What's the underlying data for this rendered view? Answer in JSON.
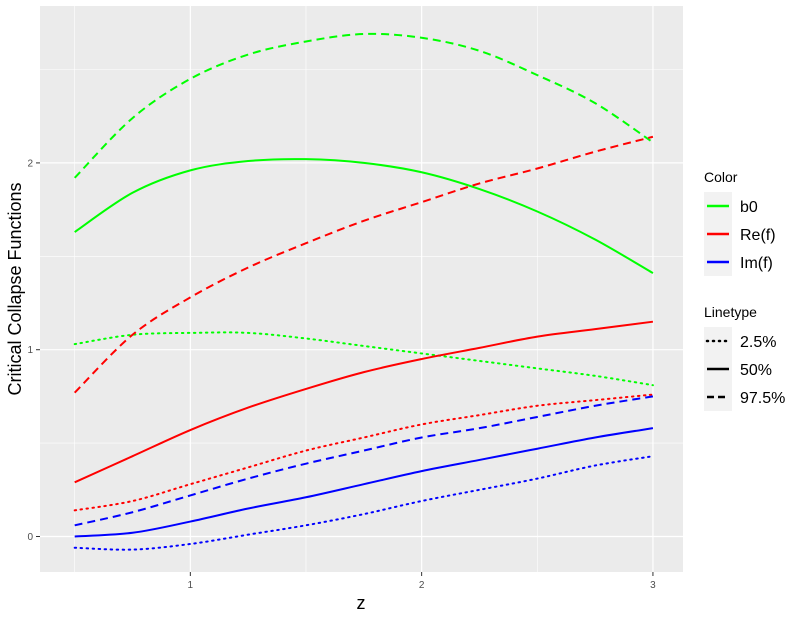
{
  "chart_data": {
    "type": "line",
    "xlabel": "z",
    "ylabel": "Critical Collapse Functions",
    "xlim": [
      0.35,
      3.13
    ],
    "ylim": [
      -0.19,
      2.84
    ],
    "x_ticks": [
      1,
      2,
      3
    ],
    "y_ticks": [
      0,
      1,
      2
    ],
    "x_tick_labels": [
      "1",
      "2",
      "3"
    ],
    "y_tick_labels": [
      "0",
      "1",
      "2"
    ],
    "grid": true,
    "legend_position": "right",
    "legends": {
      "color": {
        "title": "Color",
        "entries": [
          {
            "label": "b0",
            "color": "#00ff00"
          },
          {
            "label": "Re(f)",
            "color": "#ff0000"
          },
          {
            "label": "Im(f)",
            "color": "#0000ff"
          }
        ]
      },
      "linetype": {
        "title": "Linetype",
        "entries": [
          {
            "label": "2.5%",
            "style": "dotted"
          },
          {
            "label": "50%",
            "style": "solid"
          },
          {
            "label": "97.5%",
            "style": "dashed"
          }
        ]
      }
    },
    "x": [
      0.5,
      0.75,
      1.0,
      1.25,
      1.5,
      1.75,
      2.0,
      2.25,
      2.5,
      2.75,
      3.0
    ],
    "series": [
      {
        "color": "b0",
        "linetype": "97.5%",
        "values": [
          1.92,
          2.24,
          2.45,
          2.58,
          2.65,
          2.69,
          2.67,
          2.6,
          2.47,
          2.32,
          2.11
        ]
      },
      {
        "color": "b0",
        "linetype": "50%",
        "values": [
          1.63,
          1.84,
          1.96,
          2.01,
          2.02,
          2.0,
          1.95,
          1.86,
          1.74,
          1.59,
          1.41
        ]
      },
      {
        "color": "b0",
        "linetype": "2.5%",
        "values": [
          1.03,
          1.08,
          1.09,
          1.09,
          1.06,
          1.02,
          0.98,
          0.94,
          0.9,
          0.86,
          0.81
        ]
      },
      {
        "color": "Re(f)",
        "linetype": "97.5%",
        "values": [
          0.77,
          1.08,
          1.28,
          1.44,
          1.57,
          1.69,
          1.79,
          1.89,
          1.97,
          2.06,
          2.14
        ]
      },
      {
        "color": "Re(f)",
        "linetype": "50%",
        "values": [
          0.29,
          0.43,
          0.57,
          0.69,
          0.79,
          0.88,
          0.95,
          1.01,
          1.07,
          1.11,
          1.15
        ]
      },
      {
        "color": "Re(f)",
        "linetype": "2.5%",
        "values": [
          0.14,
          0.19,
          0.28,
          0.37,
          0.46,
          0.53,
          0.6,
          0.65,
          0.7,
          0.73,
          0.76
        ]
      },
      {
        "color": "Im(f)",
        "linetype": "97.5%",
        "values": [
          0.06,
          0.13,
          0.22,
          0.31,
          0.39,
          0.46,
          0.53,
          0.58,
          0.64,
          0.7,
          0.75
        ]
      },
      {
        "color": "Im(f)",
        "linetype": "50%",
        "values": [
          0.0,
          0.02,
          0.08,
          0.15,
          0.21,
          0.28,
          0.35,
          0.41,
          0.47,
          0.53,
          0.58
        ]
      },
      {
        "color": "Im(f)",
        "linetype": "2.5%",
        "values": [
          -0.06,
          -0.07,
          -0.04,
          0.01,
          0.06,
          0.12,
          0.19,
          0.25,
          0.31,
          0.38,
          0.43
        ]
      }
    ]
  }
}
